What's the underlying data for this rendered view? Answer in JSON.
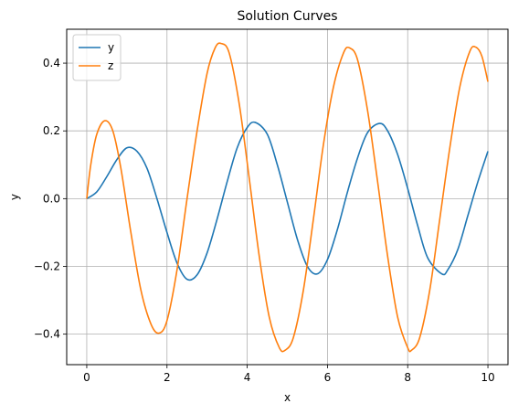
{
  "chart_data": {
    "type": "line",
    "title": "Solution Curves",
    "xlabel": "x",
    "ylabel": "y",
    "xlim": [
      -0.5,
      10.5
    ],
    "ylim": [
      -0.49,
      0.5
    ],
    "x_ticks": [
      0,
      2,
      4,
      6,
      8,
      10
    ],
    "x_tick_labels": [
      "0",
      "2",
      "4",
      "6",
      "8",
      "10"
    ],
    "y_ticks": [
      -0.4,
      -0.2,
      0.0,
      0.2,
      0.4
    ],
    "y_tick_labels": [
      "−0.4",
      "−0.2",
      "0.0",
      "0.2",
      "0.4"
    ],
    "grid": true,
    "legend_position": "top-left",
    "series": [
      {
        "name": "y",
        "color": "#1f77b4",
        "points": [
          [
            0.0,
            0.0
          ],
          [
            0.25,
            0.02
          ],
          [
            0.5,
            0.065
          ],
          [
            0.75,
            0.115
          ],
          [
            1.0,
            0.15
          ],
          [
            1.25,
            0.14
          ],
          [
            1.5,
            0.09
          ],
          [
            1.75,
            0.0
          ],
          [
            2.0,
            -0.1
          ],
          [
            2.25,
            -0.19
          ],
          [
            2.5,
            -0.238
          ],
          [
            2.75,
            -0.225
          ],
          [
            3.0,
            -0.16
          ],
          [
            3.25,
            -0.06
          ],
          [
            3.5,
            0.05
          ],
          [
            3.75,
            0.15
          ],
          [
            4.0,
            0.21
          ],
          [
            4.2,
            0.225
          ],
          [
            4.5,
            0.19
          ],
          [
            4.75,
            0.1
          ],
          [
            5.0,
            -0.01
          ],
          [
            5.25,
            -0.12
          ],
          [
            5.5,
            -0.2
          ],
          [
            5.75,
            -0.222
          ],
          [
            6.0,
            -0.18
          ],
          [
            6.25,
            -0.09
          ],
          [
            6.5,
            0.02
          ],
          [
            6.75,
            0.12
          ],
          [
            7.0,
            0.195
          ],
          [
            7.3,
            0.222
          ],
          [
            7.5,
            0.2
          ],
          [
            7.75,
            0.13
          ],
          [
            8.0,
            0.03
          ],
          [
            8.25,
            -0.08
          ],
          [
            8.5,
            -0.175
          ],
          [
            8.85,
            -0.222
          ],
          [
            9.0,
            -0.21
          ],
          [
            9.25,
            -0.15
          ],
          [
            9.5,
            -0.05
          ],
          [
            9.75,
            0.05
          ],
          [
            10.0,
            0.14
          ]
        ]
      },
      {
        "name": "z",
        "color": "#ff7f0e",
        "points": [
          [
            0.0,
            0.0
          ],
          [
            0.1,
            0.1
          ],
          [
            0.25,
            0.19
          ],
          [
            0.45,
            0.23
          ],
          [
            0.65,
            0.2
          ],
          [
            0.85,
            0.09
          ],
          [
            1.1,
            -0.1
          ],
          [
            1.35,
            -0.27
          ],
          [
            1.6,
            -0.37
          ],
          [
            1.8,
            -0.397
          ],
          [
            2.0,
            -0.36
          ],
          [
            2.25,
            -0.21
          ],
          [
            2.5,
            0.0
          ],
          [
            2.75,
            0.2
          ],
          [
            3.0,
            0.37
          ],
          [
            3.2,
            0.445
          ],
          [
            3.35,
            0.458
          ],
          [
            3.55,
            0.43
          ],
          [
            3.8,
            0.28
          ],
          [
            4.05,
            0.06
          ],
          [
            4.3,
            -0.17
          ],
          [
            4.55,
            -0.35
          ],
          [
            4.8,
            -0.44
          ],
          [
            4.95,
            -0.447
          ],
          [
            5.15,
            -0.41
          ],
          [
            5.4,
            -0.27
          ],
          [
            5.65,
            -0.06
          ],
          [
            5.9,
            0.16
          ],
          [
            6.15,
            0.33
          ],
          [
            6.4,
            0.43
          ],
          [
            6.55,
            0.445
          ],
          [
            6.75,
            0.41
          ],
          [
            7.0,
            0.26
          ],
          [
            7.25,
            0.05
          ],
          [
            7.5,
            -0.17
          ],
          [
            7.75,
            -0.35
          ],
          [
            8.0,
            -0.44
          ],
          [
            8.1,
            -0.447
          ],
          [
            8.3,
            -0.41
          ],
          [
            8.55,
            -0.27
          ],
          [
            8.8,
            -0.06
          ],
          [
            9.05,
            0.15
          ],
          [
            9.3,
            0.33
          ],
          [
            9.55,
            0.435
          ],
          [
            9.7,
            0.447
          ],
          [
            9.85,
            0.42
          ],
          [
            10.0,
            0.345
          ]
        ]
      }
    ]
  }
}
